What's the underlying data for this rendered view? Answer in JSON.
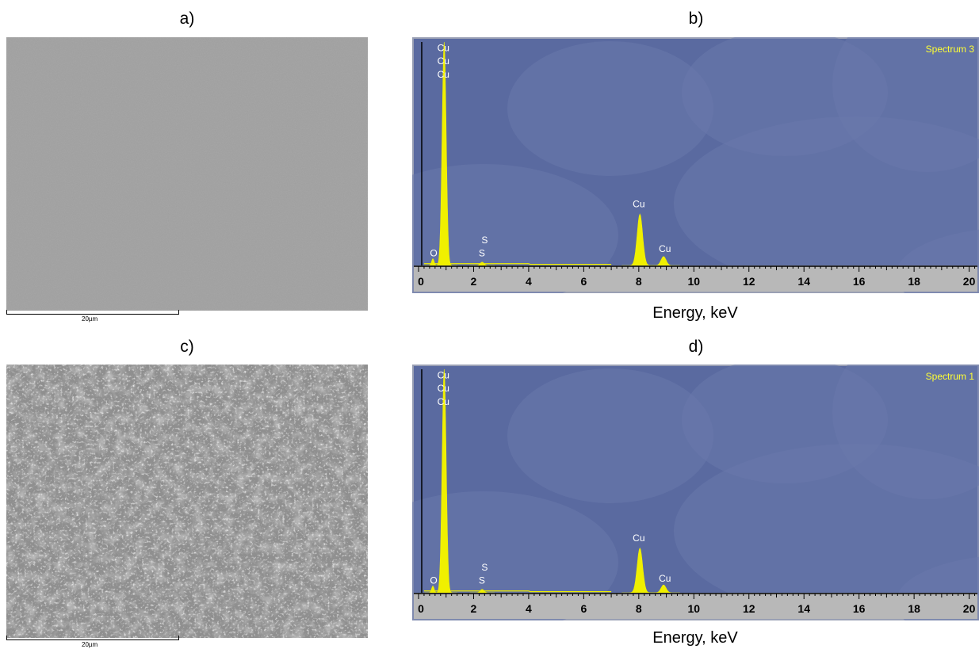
{
  "panels": {
    "a": {
      "label": "a)",
      "scale_bar": "20µm"
    },
    "b": {
      "label": "b)",
      "spectrum_name": "Spectrum 3",
      "xlabel": "Energy, keV"
    },
    "c": {
      "label": "c)",
      "scale_bar": "20µm"
    },
    "d": {
      "label": "d)",
      "spectrum_name": "Spectrum 1",
      "xlabel": "Energy, keV"
    }
  },
  "colors": {
    "spectrum_background": "#5a6aa0",
    "peak_fill": "#f0f000",
    "label_color": "#ffffff",
    "spectrum_name_color": "#ffff33",
    "axis_strip": "#b8b8b8"
  },
  "chart_data": [
    {
      "panel": "b",
      "type": "area",
      "title": "Spectrum 3",
      "xlabel": "Energy, keV",
      "ylabel": "",
      "xlim": [
        0,
        20.3
      ],
      "ylim": [
        0,
        100
      ],
      "x_ticks": [
        "0",
        "2",
        "4",
        "6",
        "8",
        "10",
        "12",
        "14",
        "16",
        "18",
        "20"
      ],
      "peaks": [
        {
          "element": "Cu",
          "energy": 0.93,
          "height": 100,
          "width": 0.16
        },
        {
          "element": "O",
          "energy": 0.52,
          "height": 3,
          "width": 0.1
        },
        {
          "element": "S",
          "energy": 2.31,
          "height": 1.5,
          "width": 0.15
        },
        {
          "element": "Cu",
          "energy": 8.04,
          "height": 23,
          "width": 0.22
        },
        {
          "element": "Cu",
          "energy": 8.9,
          "height": 4,
          "width": 0.2
        }
      ],
      "peak_labels": [
        {
          "text": "Cu",
          "energy": 0.9,
          "y": 96
        },
        {
          "text": "Cu",
          "energy": 0.9,
          "y": 90
        },
        {
          "text": "Cu",
          "energy": 0.9,
          "y": 84
        },
        {
          "text": "O",
          "energy": 0.55,
          "y": 4
        },
        {
          "text": "S",
          "energy": 2.4,
          "y": 10
        },
        {
          "text": "S",
          "energy": 2.3,
          "y": 4
        },
        {
          "text": "Cu",
          "energy": 8.0,
          "y": 26
        },
        {
          "text": "Cu",
          "energy": 8.95,
          "y": 6
        }
      ]
    },
    {
      "panel": "d",
      "type": "area",
      "title": "Spectrum 1",
      "xlabel": "Energy, keV",
      "ylabel": "",
      "xlim": [
        0,
        20.3
      ],
      "ylim": [
        0,
        100
      ],
      "x_ticks": [
        "0",
        "2",
        "4",
        "6",
        "8",
        "10",
        "12",
        "14",
        "16",
        "18",
        "20"
      ],
      "peaks": [
        {
          "element": "Cu",
          "energy": 0.93,
          "height": 100,
          "width": 0.16
        },
        {
          "element": "O",
          "energy": 0.52,
          "height": 3,
          "width": 0.1
        },
        {
          "element": "S",
          "energy": 2.31,
          "height": 1.5,
          "width": 0.15
        },
        {
          "element": "Cu",
          "energy": 8.04,
          "height": 20,
          "width": 0.22
        },
        {
          "element": "Cu",
          "energy": 8.9,
          "height": 3.5,
          "width": 0.2
        }
      ],
      "peak_labels": [
        {
          "text": "Cu",
          "energy": 0.9,
          "y": 96
        },
        {
          "text": "Cu",
          "energy": 0.9,
          "y": 90
        },
        {
          "text": "Cu",
          "energy": 0.9,
          "y": 84
        },
        {
          "text": "O",
          "energy": 0.55,
          "y": 4
        },
        {
          "text": "S",
          "energy": 2.4,
          "y": 10
        },
        {
          "text": "S",
          "energy": 2.3,
          "y": 4
        },
        {
          "text": "Cu",
          "energy": 8.0,
          "y": 23
        },
        {
          "text": "Cu",
          "energy": 8.95,
          "y": 5
        }
      ]
    }
  ]
}
